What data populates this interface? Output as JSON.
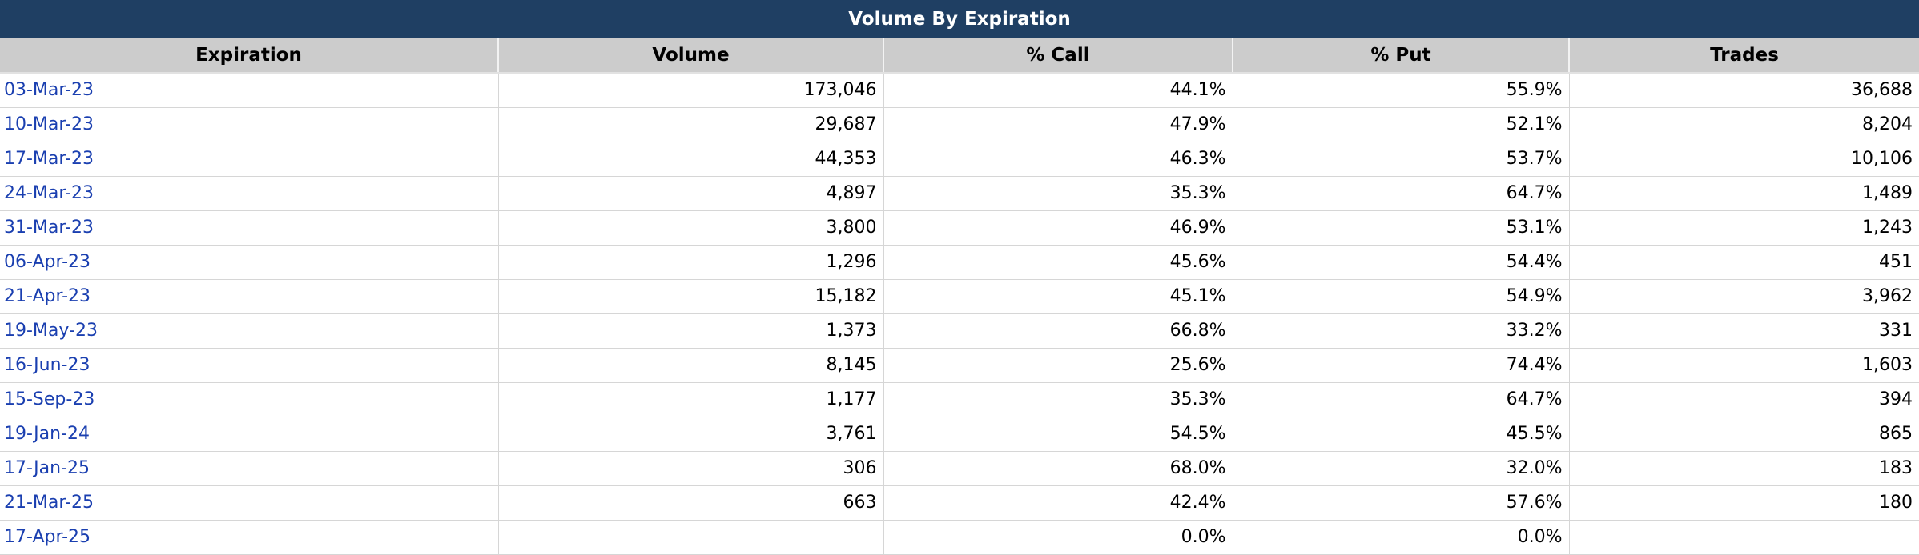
{
  "title": "Volume By Expiration",
  "columns": [
    "Expiration",
    "Volume",
    "% Call",
    "% Put",
    "Trades"
  ],
  "rows": [
    {
      "expiration": "03-Mar-23",
      "volume": "173,046",
      "pct_call": "44.1%",
      "pct_put": "55.9%",
      "trades": "36,688"
    },
    {
      "expiration": "10-Mar-23",
      "volume": "29,687",
      "pct_call": "47.9%",
      "pct_put": "52.1%",
      "trades": "8,204"
    },
    {
      "expiration": "17-Mar-23",
      "volume": "44,353",
      "pct_call": "46.3%",
      "pct_put": "53.7%",
      "trades": "10,106"
    },
    {
      "expiration": "24-Mar-23",
      "volume": "4,897",
      "pct_call": "35.3%",
      "pct_put": "64.7%",
      "trades": "1,489"
    },
    {
      "expiration": "31-Mar-23",
      "volume": "3,800",
      "pct_call": "46.9%",
      "pct_put": "53.1%",
      "trades": "1,243"
    },
    {
      "expiration": "06-Apr-23",
      "volume": "1,296",
      "pct_call": "45.6%",
      "pct_put": "54.4%",
      "trades": "451"
    },
    {
      "expiration": "21-Apr-23",
      "volume": "15,182",
      "pct_call": "45.1%",
      "pct_put": "54.9%",
      "trades": "3,962"
    },
    {
      "expiration": "19-May-23",
      "volume": "1,373",
      "pct_call": "66.8%",
      "pct_put": "33.2%",
      "trades": "331"
    },
    {
      "expiration": "16-Jun-23",
      "volume": "8,145",
      "pct_call": "25.6%",
      "pct_put": "74.4%",
      "trades": "1,603"
    },
    {
      "expiration": "15-Sep-23",
      "volume": "1,177",
      "pct_call": "35.3%",
      "pct_put": "64.7%",
      "trades": "394"
    },
    {
      "expiration": "19-Jan-24",
      "volume": "3,761",
      "pct_call": "54.5%",
      "pct_put": "45.5%",
      "trades": "865"
    },
    {
      "expiration": "17-Jan-25",
      "volume": "306",
      "pct_call": "68.0%",
      "pct_put": "32.0%",
      "trades": "183"
    },
    {
      "expiration": "21-Mar-25",
      "volume": "663",
      "pct_call": "42.4%",
      "pct_put": "57.6%",
      "trades": "180"
    },
    {
      "expiration": "17-Apr-25",
      "volume": "",
      "pct_call": "0.0%",
      "pct_put": "0.0%",
      "trades": ""
    }
  ],
  "colors": {
    "title_bg": "#1f3f63",
    "header_bg": "#cccccc",
    "link": "#1a3fb0"
  }
}
